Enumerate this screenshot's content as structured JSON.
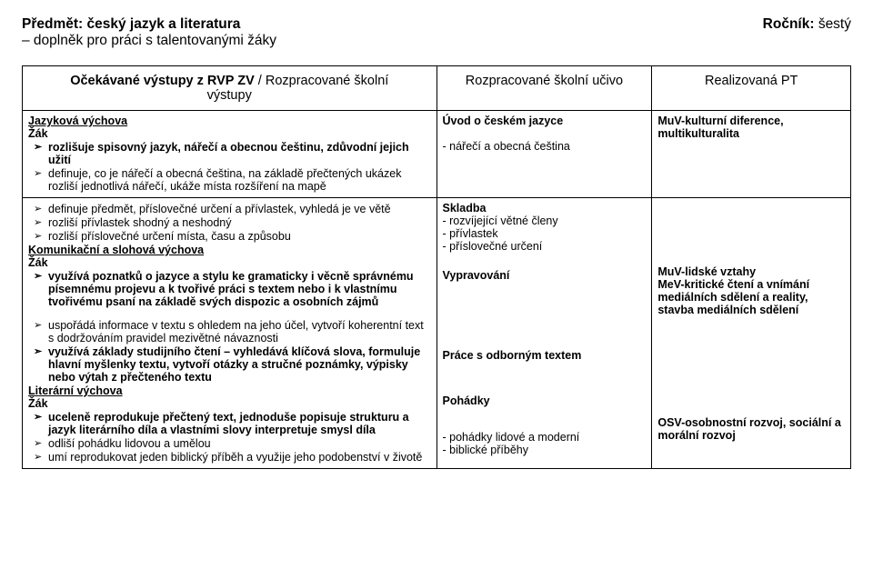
{
  "header": {
    "subject_label": "Předmět:",
    "subject_value": "český jazyk a literatura",
    "grade_label": "Ročník:",
    "grade_value": "šestý",
    "subtitle": "– doplněk pro práci s talentovanými žáky"
  },
  "columns": {
    "c1": "Očekávané výstupy z RVP ZV / Rozpracované školní výstupy",
    "c1_sub": "Rozpracované školní",
    "c2": "Rozpracované školní učivo",
    "c3": "Realizovaná PT"
  },
  "row1": {
    "c1_section": "Jazyková výchova",
    "c1_zak": "Žák",
    "c1_li1": "rozlišuje spisovný jazyk, nářečí a obecnou češtinu, zdůvodní jejich užití",
    "c1_li2": "definuje, co je nářečí a obecná čeština, na základě přečtených ukázek rozliší jednotlivá nářečí, ukáže místa rozšíření na mapě",
    "c2_l1": "Úvod o českém jazyce",
    "c2_l2": "- nářečí a obecná čeština",
    "c3_l1": "MuV-kulturní diference, multikulturalita"
  },
  "row2": {
    "c1_li1": "definuje předmět, příslovečné určení a přívlastek, vyhledá je ve větě",
    "c1_li2": "rozliší přívlastek shodný a neshodný",
    "c1_li3": "rozliší příslovečné určení místa, času a způsobu",
    "c1_section2": "Komunikační a slohová výchova",
    "c1_zak2": "Žák",
    "c1_li4": "využívá poznatků o jazyce a stylu ke gramaticky i věcně správnému písemnému projevu a k tvořivé práci s textem nebo i k vlastnímu tvořivému psaní na základě svých dispozic a osobních zájmů",
    "c1_li5": "uspořádá informace v textu s ohledem na jeho účel, vytvoří koherentní text s dodržováním pravidel mezivětné návaznosti",
    "c1_li6": "využívá základy studijního čtení – vyhledává klíčová slova, formuluje hlavní myšlenky textu, vytvoří otázky a stručné poznámky, výpisky nebo výtah z přečteného textu",
    "c1_section3": "Literární výchova",
    "c1_zak3": "Žák",
    "c1_li7": "uceleně reprodukuje přečtený text, jednoduše popisuje strukturu a jazyk literárního díla a vlastními slovy interpretuje smysl díla",
    "c1_li8": "odliší pohádku lidovou a umělou",
    "c1_li9": "umí reprodukovat jeden biblický příběh a využije jeho podobenství v životě",
    "c2_b1_t": "Skladba",
    "c2_b1_l1": "- rozvíjející větné členy",
    "c2_b1_l2": "- přívlastek",
    "c2_b1_l3": "- příslovečné určení",
    "c2_b2": "Vypravování",
    "c2_b3": "Práce s odborným textem",
    "c2_b4_t": "Pohádky",
    "c2_b4_l1": "- pohádky lidové a moderní",
    "c2_b4_l2": "- biblické příběhy",
    "c3_b1": "MuV-lidské vztahy",
    "c3_b1b": "MeV-kritické čtení a vnímání mediálních sdělení a reality, stavba mediálních sdělení",
    "c3_b2": "OSV-osobnostní rozvoj, sociální a morální rozvoj"
  }
}
